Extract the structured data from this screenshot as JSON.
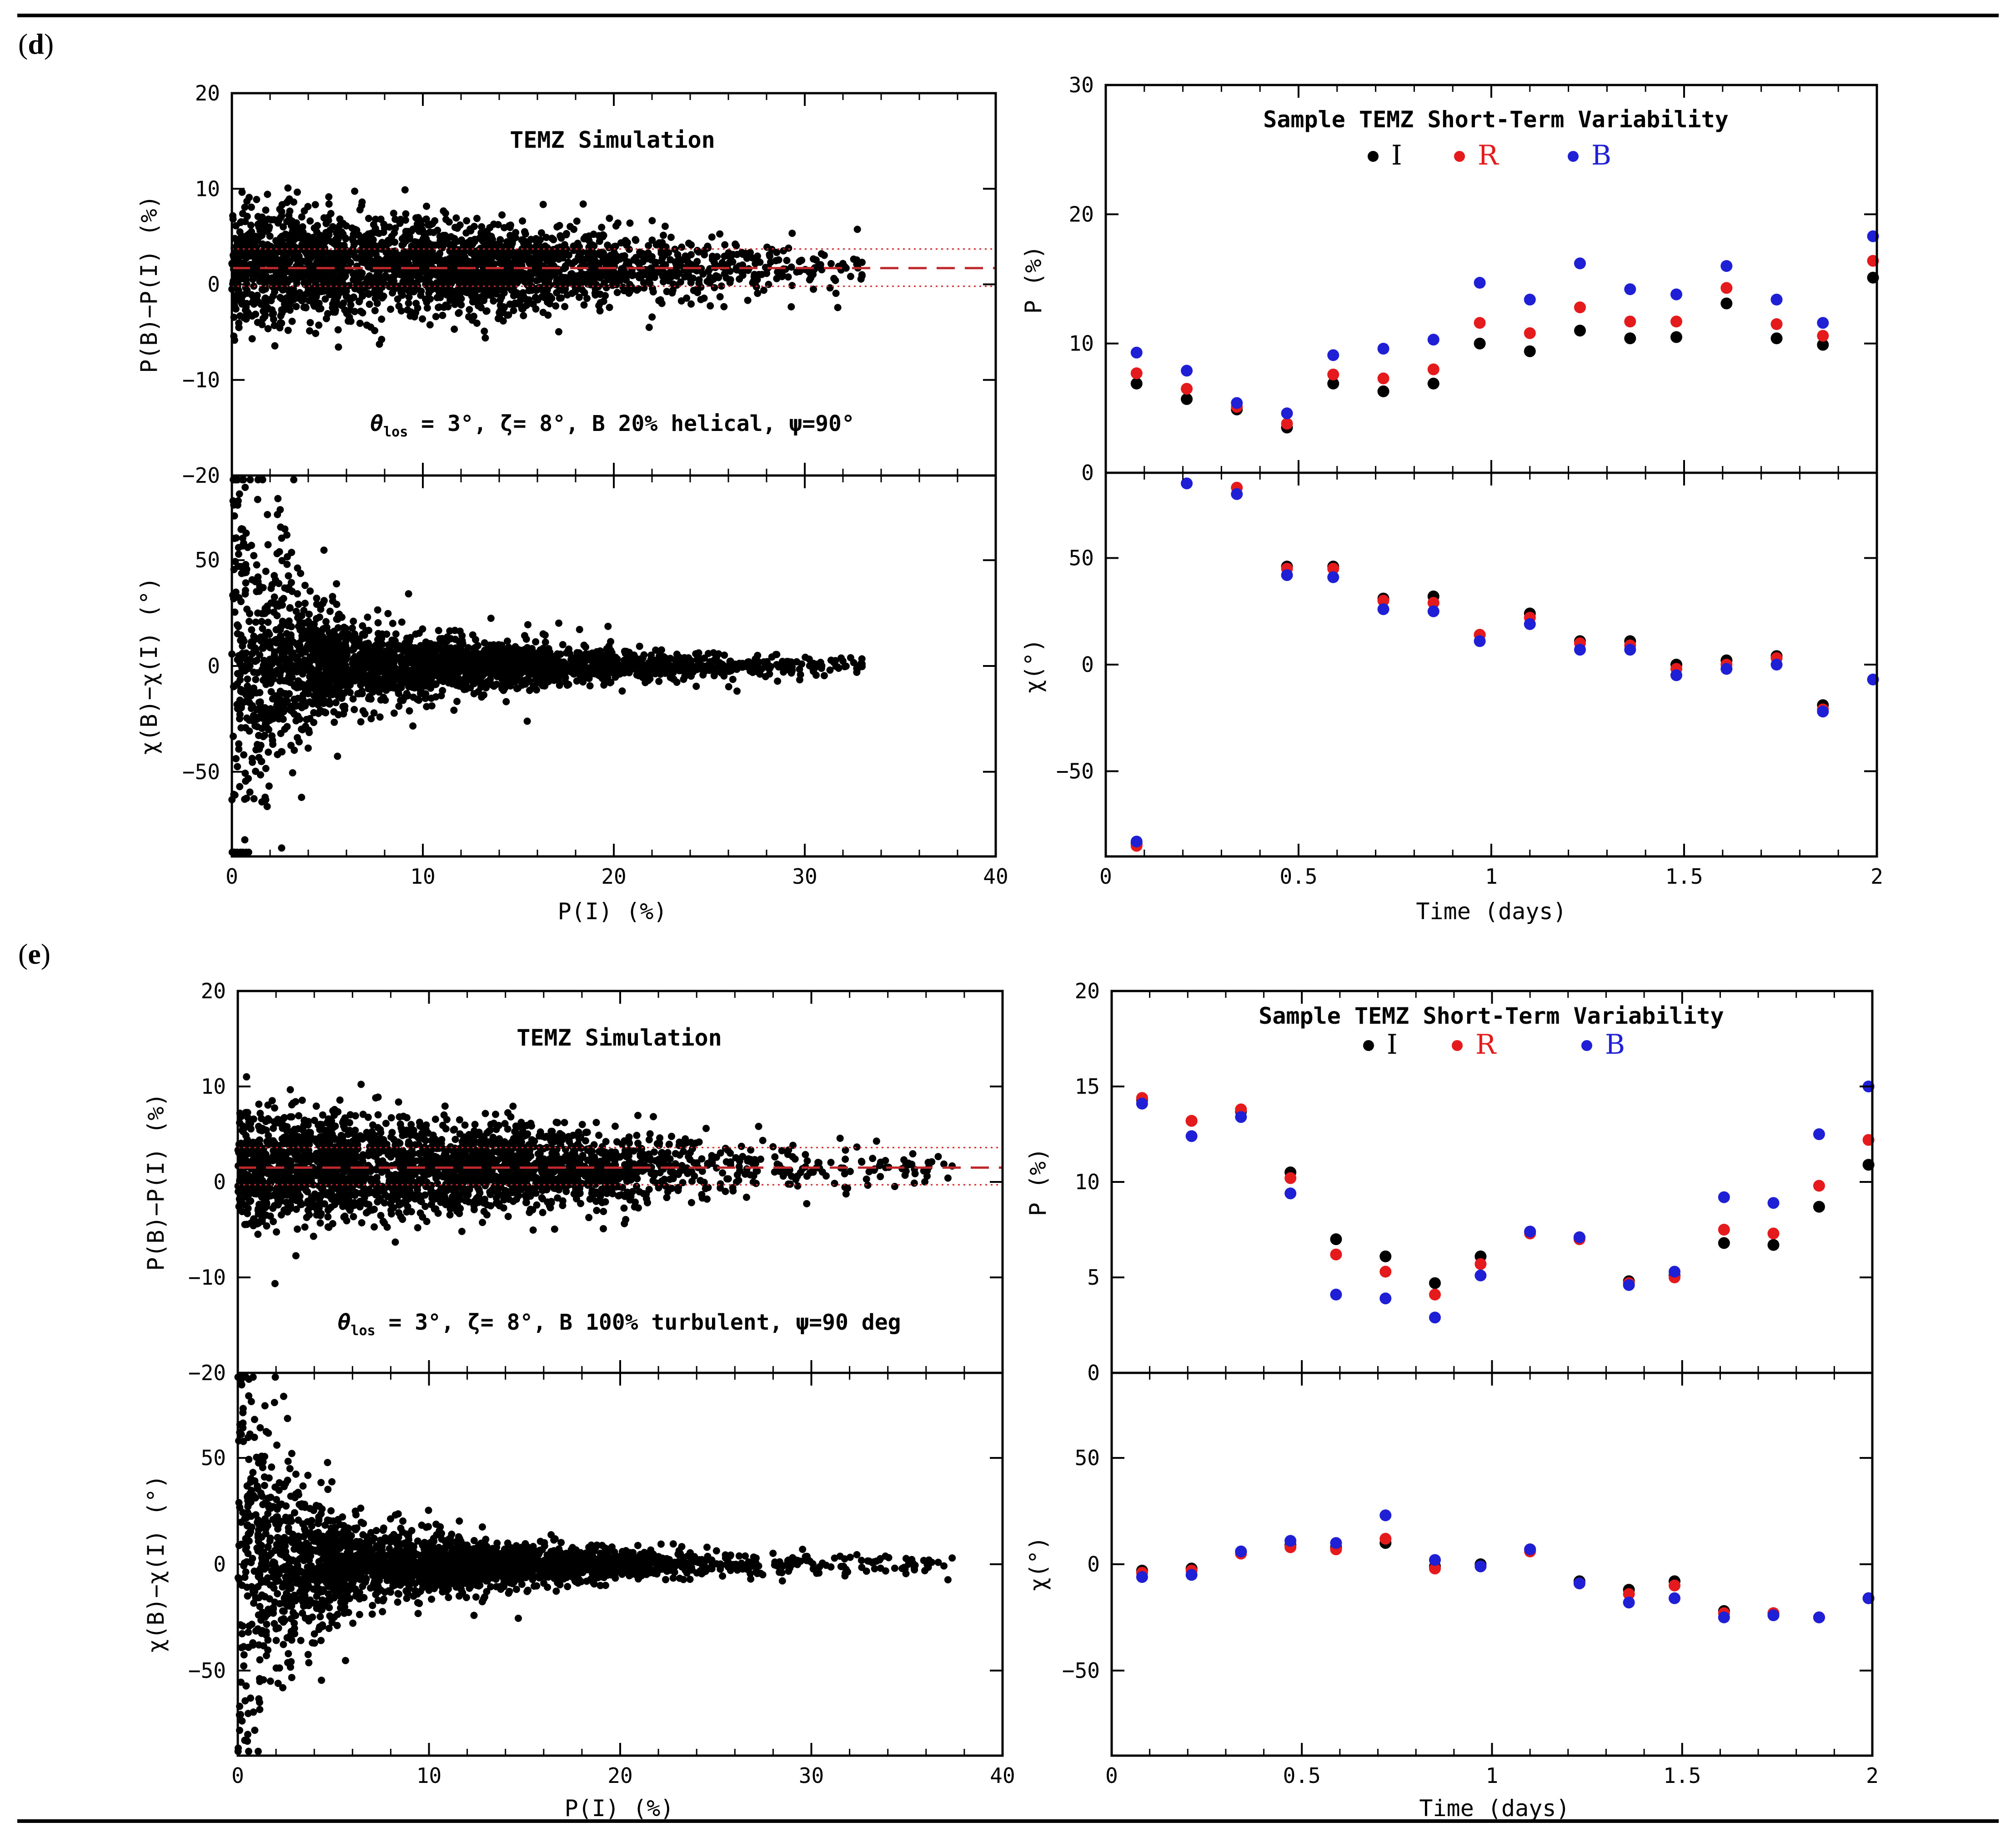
{
  "panels": [
    {
      "label": "(d)",
      "scatter": {
        "title": "TEMZ Simulation",
        "annotation": "θ_los = 3°, ζ= 8°, B 20% helical, ψ=90°",
        "annotation_parts": {
          "theta": "θ",
          "los": "los",
          "rest": " = 3°, ζ= 8°, B 20% helical, ψ=90°"
        },
        "xlabel": "P(I) (%)",
        "top_ylabel": "P(B)−P(I) (%)",
        "bottom_ylabel": "χ(B)−χ(I) (°)",
        "xlim": [
          0,
          40
        ],
        "xticks": [
          "0",
          "10",
          "20",
          "30",
          "40"
        ],
        "top_ylim": [
          -20,
          20
        ],
        "top_yticks": [
          "20",
          "10",
          "0",
          "−10",
          "−20"
        ],
        "bottom_ylim": [
          -90,
          90
        ],
        "bottom_yticks": [
          "50",
          "0",
          "−50"
        ],
        "mean_line": 1.7,
        "band": [
          -0.2,
          3.7
        ],
        "x_extent": 33,
        "seed": 11
      },
      "variability": {
        "title": "Sample TEMZ Short-Term Variability",
        "legend": [
          "I",
          "R",
          "B"
        ],
        "xlabel": "Time (days)",
        "top_ylabel": "P (%)",
        "bottom_ylabel": "χ(°)",
        "xlim": [
          0,
          2
        ],
        "xticks": [
          "0",
          "0.5",
          "1",
          "1.5",
          "2"
        ],
        "top_ylim": [
          0,
          30
        ],
        "top_yticks": [
          "30",
          "20",
          "10",
          "0"
        ],
        "bottom_ylim": [
          -90,
          90
        ],
        "bottom_yticks": [
          "50",
          "0",
          "−50"
        ],
        "time": [
          0.08,
          0.21,
          0.34,
          0.47,
          0.59,
          0.72,
          0.85,
          0.97,
          1.1,
          1.23,
          1.36,
          1.48,
          1.61,
          1.74,
          1.86,
          1.99
        ],
        "P": {
          "I": [
            6.9,
            5.7,
            4.9,
            3.5,
            6.9,
            6.3,
            6.9,
            10.0,
            9.4,
            11.0,
            10.4,
            10.5,
            13.1,
            10.4,
            9.9,
            15.1
          ],
          "R": [
            7.7,
            6.5,
            5.1,
            3.8,
            7.6,
            7.3,
            8.0,
            11.6,
            10.8,
            12.8,
            11.7,
            11.7,
            14.3,
            11.5,
            10.6,
            16.4
          ],
          "B": [
            9.3,
            7.9,
            5.4,
            4.6,
            9.1,
            9.6,
            10.3,
            14.7,
            13.4,
            16.2,
            14.2,
            13.8,
            16.0,
            13.4,
            11.6,
            18.3
          ]
        },
        "chi": {
          "I": [
            -84,
            null,
            null,
            46,
            46,
            31,
            32,
            14,
            24,
            11,
            11,
            0,
            2,
            4,
            -19,
            null
          ],
          "R": [
            -85,
            null,
            83,
            45,
            45,
            30,
            29,
            14,
            22,
            10,
            9,
            -2,
            0,
            3,
            -21,
            null
          ],
          "B": [
            -83,
            85,
            80,
            42,
            41,
            26,
            25,
            11,
            19,
            7,
            7,
            -5,
            -2,
            0,
            -22,
            -7
          ]
        }
      }
    },
    {
      "label": "(e)",
      "scatter": {
        "title": "TEMZ Simulation",
        "annotation": "θ_los = 3°, ζ= 8°, B 100% turbulent, ψ=90 deg",
        "annotation_parts": {
          "theta": "θ",
          "los": "los",
          "rest": " = 3°, ζ= 8°, B 100% turbulent, ψ=90 deg"
        },
        "xlabel": "P(I) (%)",
        "top_ylabel": "P(B)−P(I) (%)",
        "bottom_ylabel": "χ(B)−χ(I) (°)",
        "xlim": [
          0,
          40
        ],
        "xticks": [
          "0",
          "10",
          "20",
          "30",
          "40"
        ],
        "top_ylim": [
          -20,
          20
        ],
        "top_yticks": [
          "20",
          "10",
          "0",
          "−10",
          "−20"
        ],
        "bottom_ylim": [
          -90,
          90
        ],
        "bottom_yticks": [
          "50",
          "0",
          "−50"
        ],
        "mean_line": 1.5,
        "band": [
          -0.3,
          3.6
        ],
        "x_extent": 37.5,
        "seed": 29
      },
      "variability": {
        "title": "Sample TEMZ Short-Term Variability",
        "legend": [
          "I",
          "R",
          "B"
        ],
        "xlabel": "Time (days)",
        "top_ylabel": "P (%)",
        "bottom_ylabel": "χ(°)",
        "xlim": [
          0,
          2
        ],
        "xticks": [
          "0",
          "0.5",
          "1",
          "1.5",
          "2"
        ],
        "top_ylim": [
          0,
          20
        ],
        "top_yticks": [
          "20",
          "15",
          "10",
          "5",
          "0"
        ],
        "bottom_ylim": [
          -90,
          90
        ],
        "bottom_yticks": [
          "50",
          "0",
          "−50"
        ],
        "time": [
          0.08,
          0.21,
          0.34,
          0.47,
          0.59,
          0.72,
          0.85,
          0.97,
          1.1,
          1.23,
          1.36,
          1.48,
          1.61,
          1.74,
          1.86,
          1.99
        ],
        "P": {
          "I": [
            14.3,
            13.2,
            13.7,
            10.5,
            7.0,
            6.1,
            4.7,
            6.1,
            7.4,
            7.1,
            4.8,
            5.1,
            6.8,
            6.7,
            8.7,
            10.9
          ],
          "R": [
            14.4,
            13.2,
            13.8,
            10.2,
            6.2,
            5.3,
            4.1,
            5.7,
            7.3,
            7.0,
            4.7,
            5.0,
            7.5,
            7.3,
            9.8,
            12.2
          ],
          "B": [
            14.1,
            12.4,
            13.4,
            9.4,
            4.1,
            3.9,
            2.9,
            5.1,
            7.4,
            7.1,
            4.6,
            5.3,
            9.2,
            8.9,
            12.5,
            15.0
          ]
        },
        "chi": {
          "I": [
            -3,
            -2,
            6,
            9,
            8,
            10,
            -1,
            0,
            7,
            -8,
            -12,
            -8,
            -22,
            -23,
            -25,
            -16
          ],
          "R": [
            -4,
            -3,
            5,
            8,
            7,
            12,
            -2,
            -1,
            6,
            -9,
            -14,
            -10,
            -23,
            -23,
            -25,
            -16
          ],
          "B": [
            -6,
            -5,
            6,
            11,
            10,
            23,
            2,
            -1,
            7,
            -9,
            -18,
            -16,
            -25,
            -24,
            -25,
            -16
          ]
        }
      }
    }
  ],
  "colors": {
    "I": "#000000",
    "R": "#e41a1c",
    "B": "#1f1fd6",
    "mean_line": "#c0282c",
    "band": "#d9262a",
    "frame": "#000000"
  }
}
